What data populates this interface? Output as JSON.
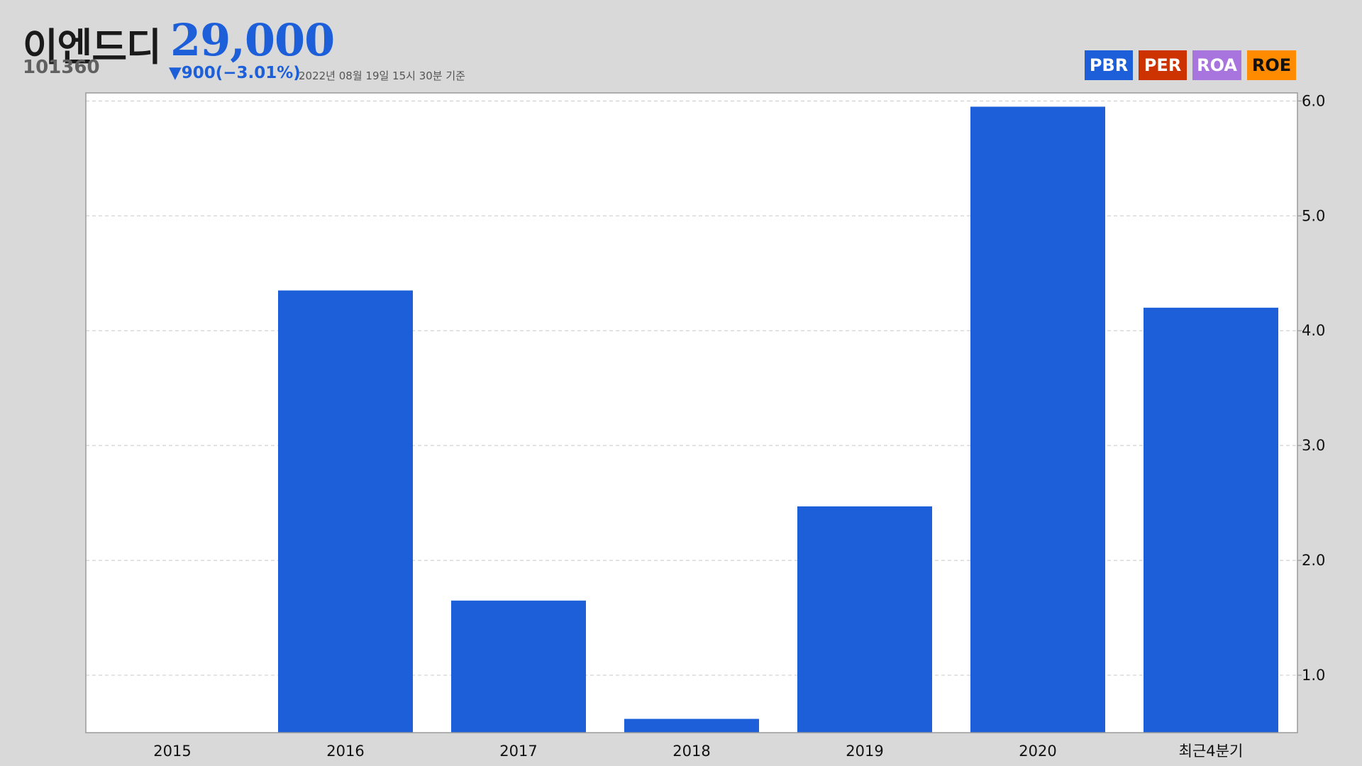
{
  "header": {
    "name": "이엔드디",
    "price": "29,000",
    "code": "101360",
    "change": "▼900(−3.01%)",
    "as_of": "2022년 08월 19일 15시 30분 기준"
  },
  "metric_tabs": [
    {
      "label": "PBR",
      "color": "#1c5fd9"
    },
    {
      "label": "PER",
      "color": "#cc3300"
    },
    {
      "label": "ROA",
      "color": "#a874de"
    },
    {
      "label": "ROE",
      "color": "#ff8c00"
    }
  ],
  "colors": {
    "bar": "#1c5fd9",
    "plot_background": "#ffffff",
    "page_background": "#d9d9d9",
    "grid": "#c8c8c8"
  },
  "chart_data": {
    "type": "bar",
    "metric": "PBR",
    "categories": [
      "2015",
      "2016",
      "2017",
      "2018",
      "2019",
      "2020",
      "최근4분기"
    ],
    "values": [
      null,
      4.35,
      1.65,
      0.62,
      2.47,
      5.95,
      4.2
    ],
    "ylim": [
      0.5,
      6.07
    ],
    "yticks": [
      1.0,
      2.0,
      3.0,
      4.0,
      5.0,
      6.0
    ],
    "ytick_labels": [
      "1.0",
      "2.0",
      "3.0",
      "4.0",
      "5.0",
      "6.0"
    ],
    "y_axis_side": "right",
    "grid": true,
    "grid_style": "dashed",
    "legend": false
  }
}
